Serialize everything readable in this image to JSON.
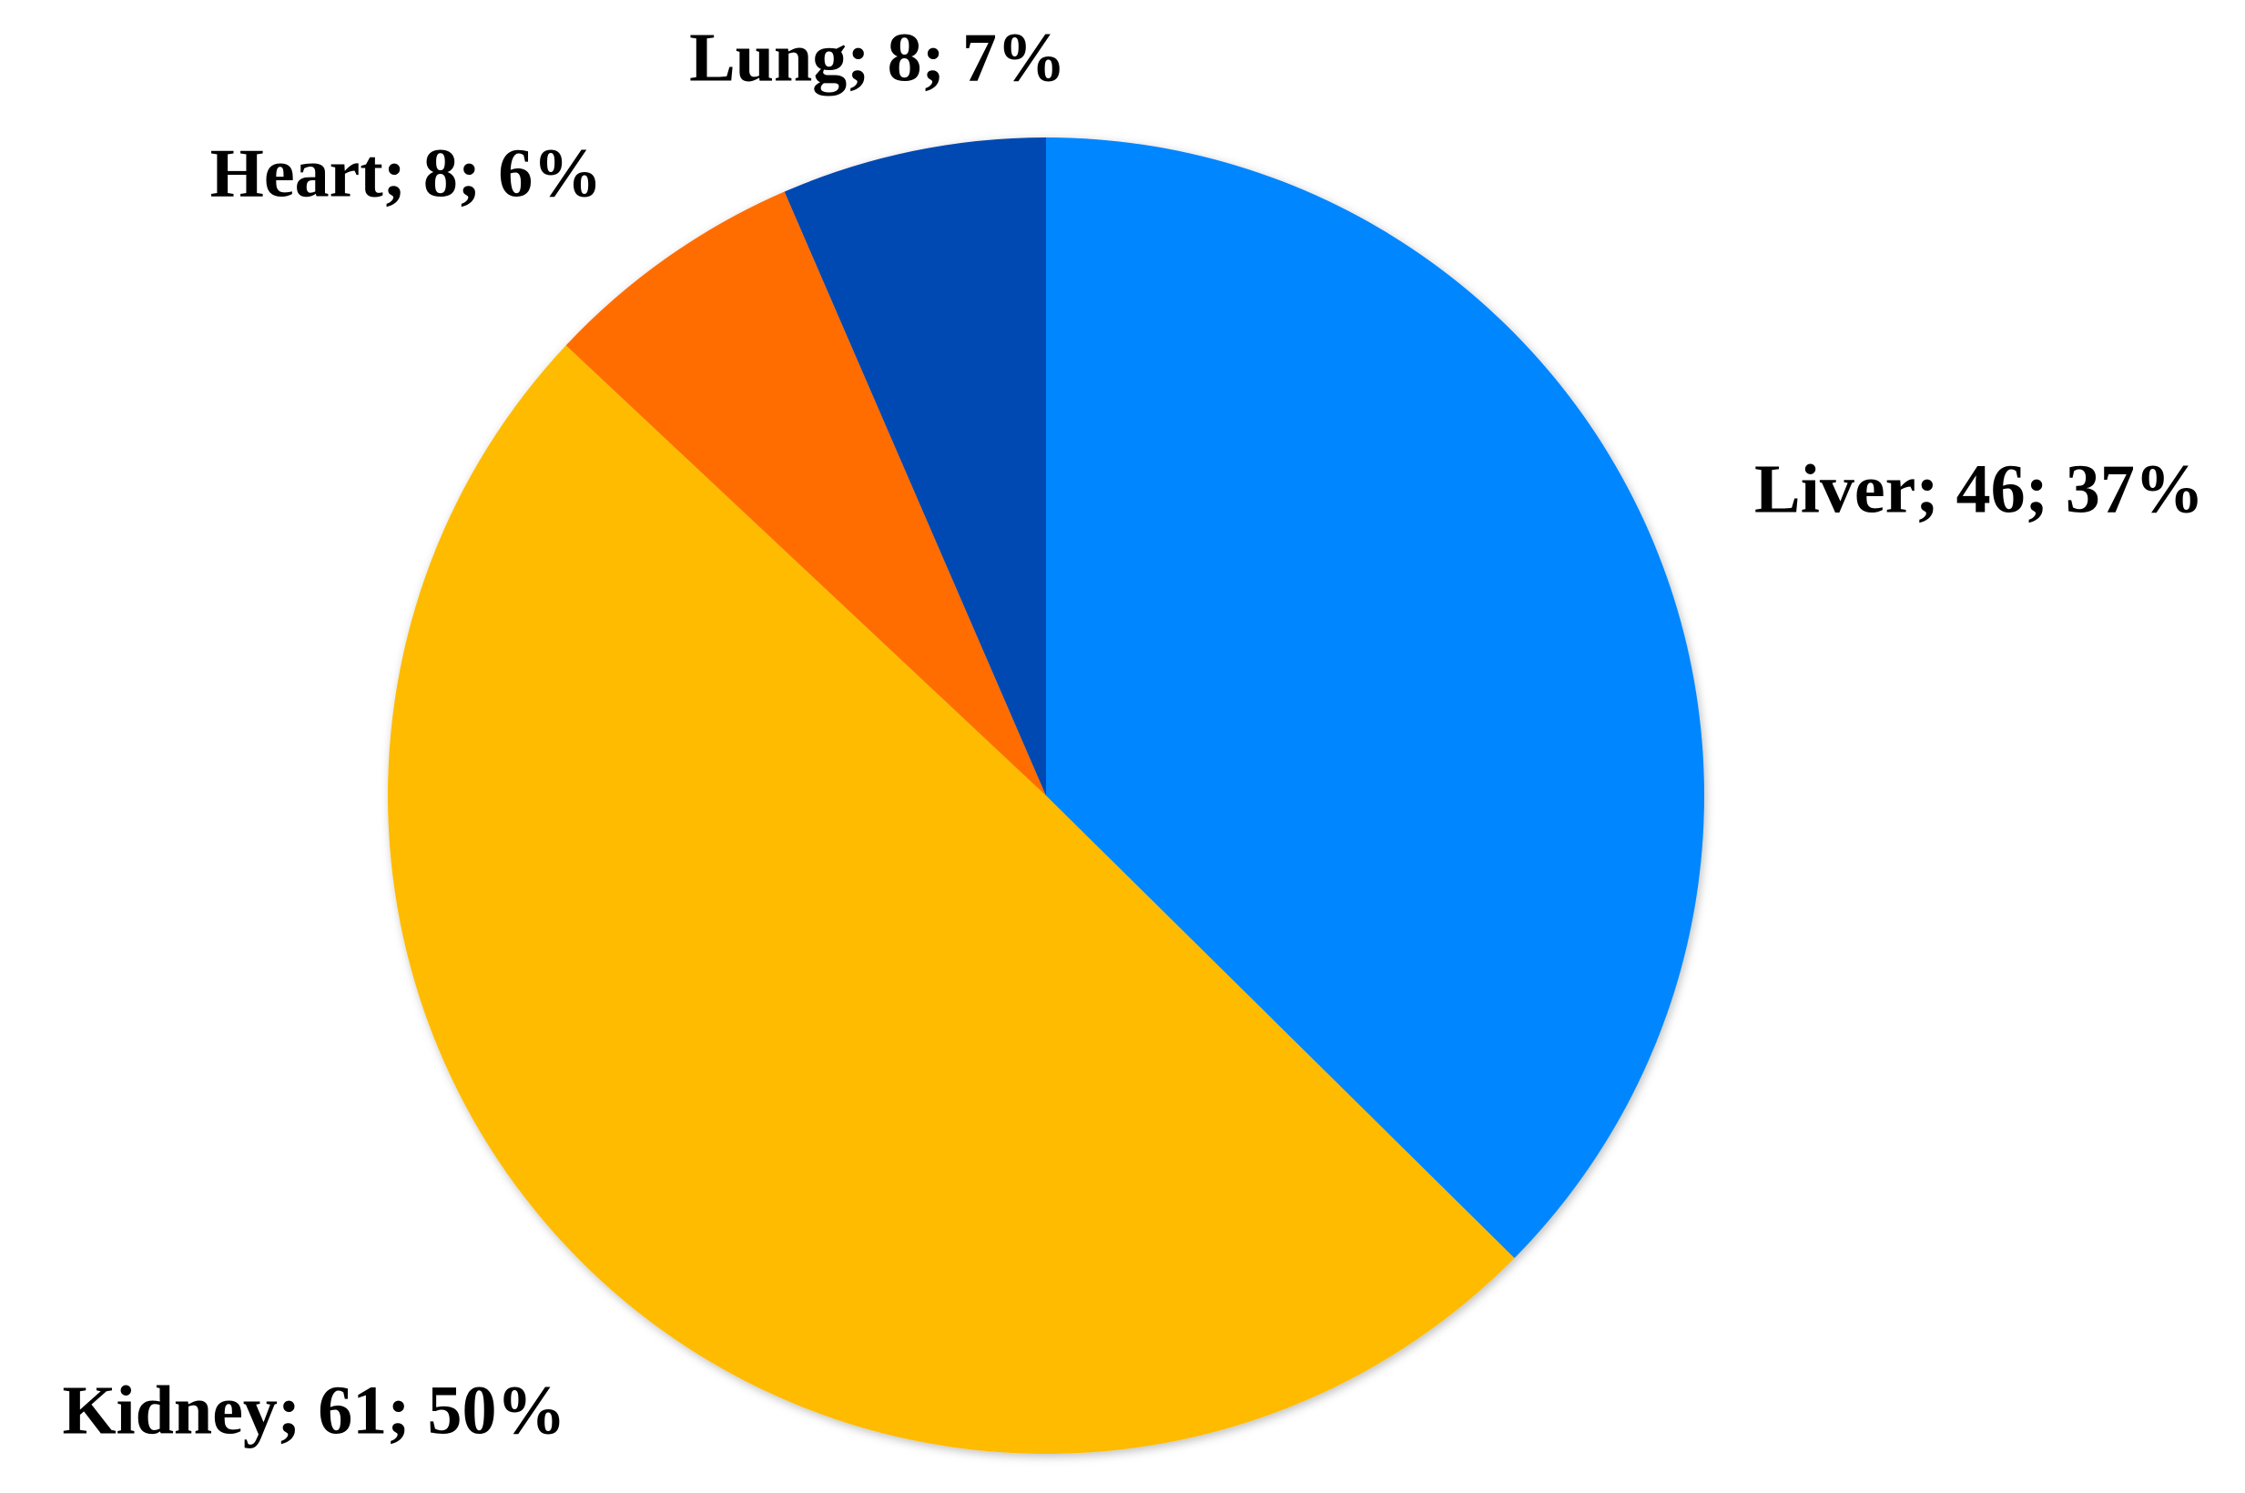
{
  "chart_data": {
    "type": "pie",
    "values": [
      46,
      61,
      8,
      8
    ],
    "value_labels": [
      "Liver; 46; 37%",
      "Kidney; 61; 50%",
      "Heart; 8; 6%",
      "Lung; 8; 7%"
    ],
    "colors": [
      "#0086ff",
      "#ffbb00",
      "#ff6d00",
      "#004ab3"
    ]
  }
}
